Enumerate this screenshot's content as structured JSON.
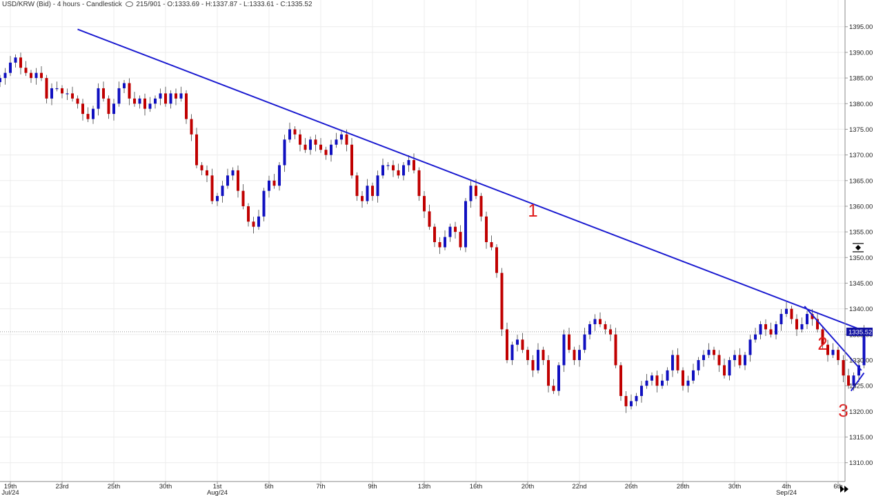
{
  "header": {
    "symbol": "USD/KRW (Bid) - 4 hours - Candlestick",
    "bars": "215/901",
    "ohlc": "O:1333.69 - H:1337.87 - L:1333.61 - C:1335.52"
  },
  "colors": {
    "up": "#1010c0",
    "down": "#c00000",
    "trendline": "#1a1ad0",
    "annotation": "#e02020",
    "grid": "#ececec"
  },
  "chart_data": {
    "type": "candlestick",
    "timeframe": "4 hours",
    "ylim": [
      1307,
      1399
    ],
    "yticks": [
      1310,
      1315,
      1320,
      1325,
      1330,
      1335,
      1340,
      1345,
      1350,
      1355,
      1360,
      1365,
      1370,
      1375,
      1380,
      1385,
      1390,
      1395
    ],
    "last_price": "1335.52",
    "x_ticks": [
      {
        "label": "19th",
        "sub": "Jul/24",
        "i": 2
      },
      {
        "label": "23rd",
        "sub": "",
        "i": 12
      },
      {
        "label": "25th",
        "sub": "",
        "i": 22
      },
      {
        "label": "30th",
        "sub": "",
        "i": 32
      },
      {
        "label": "1st",
        "sub": "Aug/24",
        "i": 42
      },
      {
        "label": "5th",
        "sub": "",
        "i": 52
      },
      {
        "label": "7th",
        "sub": "",
        "i": 62
      },
      {
        "label": "9th",
        "sub": "",
        "i": 72
      },
      {
        "label": "13th",
        "sub": "",
        "i": 82
      },
      {
        "label": "16th",
        "sub": "",
        "i": 92
      },
      {
        "label": "20th",
        "sub": "",
        "i": 102
      },
      {
        "label": "22nd",
        "sub": "",
        "i": 112
      },
      {
        "label": "26th",
        "sub": "",
        "i": 122
      },
      {
        "label": "28th",
        "sub": "",
        "i": 132
      },
      {
        "label": "30th",
        "sub": "",
        "i": 142
      },
      {
        "label": "4th",
        "sub": "Sep/24",
        "i": 152
      },
      {
        "label": "6th",
        "sub": "",
        "i": 162
      }
    ],
    "trendlines": [
      {
        "i1": 15,
        "y1": 1394.5,
        "i2": 167.5,
        "y2": 1335.5
      },
      {
        "i1": 155.5,
        "y1": 1340.5,
        "i2": 166.5,
        "y2": 1328
      },
      {
        "i1": 164.5,
        "y1": 1324,
        "i2": 167,
        "y2": 1327.5
      }
    ],
    "annotations": [
      {
        "text": "1",
        "i": 103,
        "y": 1358
      },
      {
        "text": "2",
        "i": 159,
        "y": 1332
      },
      {
        "text": "3",
        "i": 163,
        "y": 1319
      }
    ],
    "closes": [
      1385,
      1386,
      1388,
      1389,
      1387,
      1386,
      1385,
      1386,
      1385,
      1381,
      1383,
      1383,
      1382,
      1382,
      1381,
      1380,
      1378,
      1377,
      1379,
      1383,
      1381,
      1378,
      1380,
      1383,
      1384,
      1381,
      1380,
      1381,
      1379,
      1380,
      1381,
      1382,
      1380,
      1382,
      1381,
      1382,
      1377,
      1374,
      1368,
      1367,
      1366,
      1361,
      1362,
      1364,
      1366,
      1367,
      1363,
      1360,
      1357,
      1356,
      1358,
      1363,
      1365,
      1364,
      1368,
      1373,
      1375,
      1374,
      1372,
      1371,
      1373,
      1372,
      1371,
      1370,
      1372,
      1373,
      1374,
      1372,
      1366,
      1362,
      1361,
      1364,
      1362,
      1366,
      1368,
      1368,
      1367,
      1366,
      1368,
      1369,
      1367,
      1362,
      1359,
      1356,
      1353,
      1352,
      1354,
      1356,
      1355,
      1352,
      1361,
      1364,
      1362,
      1358,
      1353,
      1352,
      1347,
      1336,
      1330,
      1333,
      1334,
      1332,
      1330,
      1328,
      1332,
      1330,
      1325,
      1324,
      1329,
      1335,
      1332,
      1330,
      1332,
      1335,
      1337,
      1338,
      1337,
      1336,
      1335,
      1329,
      1323,
      1321,
      1322,
      1323,
      1325,
      1326,
      1327,
      1325,
      1326,
      1328,
      1331,
      1328,
      1325,
      1326,
      1328,
      1330,
      1331,
      1332,
      1331,
      1329,
      1327,
      1330,
      1331,
      1329,
      1331,
      1334,
      1335,
      1337,
      1336,
      1335,
      1337,
      1339,
      1340,
      1338,
      1336,
      1337,
      1339,
      1338,
      1336,
      1333,
      1331,
      1332,
      1330,
      1327,
      1325,
      1327,
      1329,
      1335.52
    ]
  }
}
